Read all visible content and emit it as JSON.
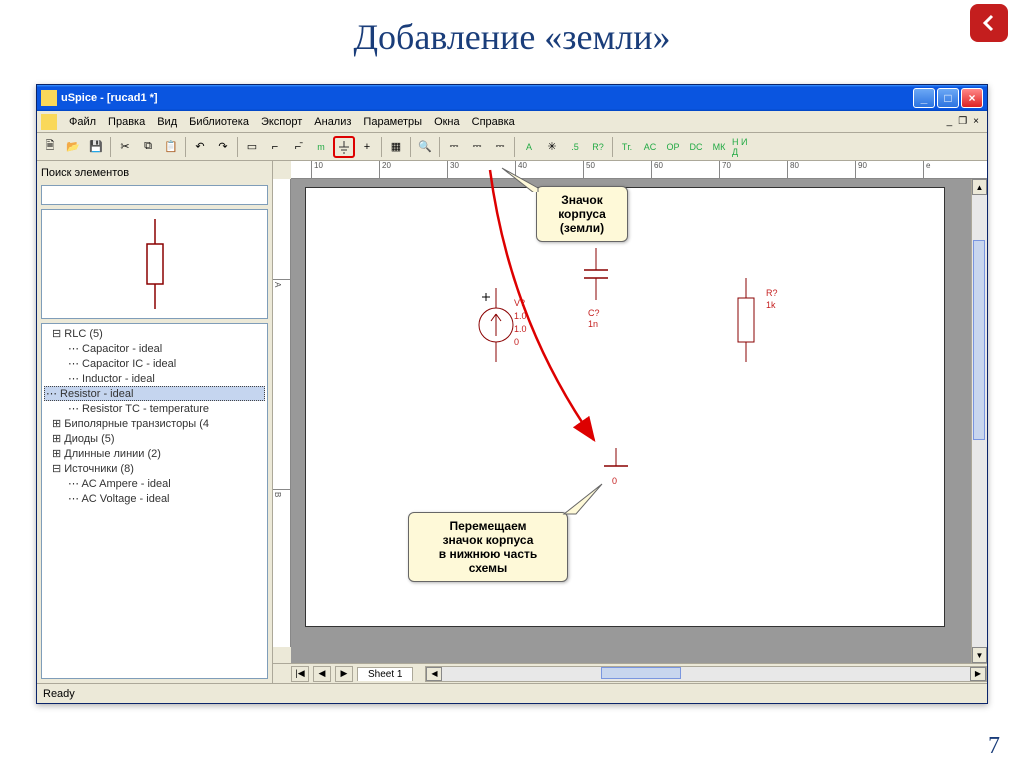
{
  "slide": {
    "title": "Добавление «земли»",
    "page_number": "7"
  },
  "window": {
    "title": "uSpice - [rucad1 *]",
    "status": "Ready"
  },
  "menu": {
    "items": [
      "Файл",
      "Правка",
      "Вид",
      "Библиотека",
      "Экспорт",
      "Анализ",
      "Параметры",
      "Окна",
      "Справка"
    ]
  },
  "toolbar": {
    "buttons": [
      "new",
      "open",
      "save",
      "sep",
      "cut",
      "copy",
      "paste",
      "sep",
      "undo",
      "redo",
      "sep",
      "arrow",
      "signal-lo",
      "signal-hi",
      "m",
      "ground",
      "plus",
      "sep",
      "grid",
      "sep",
      "zoom",
      "sep",
      "probe1",
      "probe2",
      "probe3",
      "sep",
      "A",
      "gear",
      "s",
      "R?",
      "sep",
      "tg",
      "ac",
      "op",
      "dc",
      "mk",
      "na"
    ],
    "highlight_index": 15,
    "text_labels": {
      "m": "m",
      "A": "A",
      "s": ".5",
      "R?": "R?",
      "tg": "Тг.",
      "ac": "AC",
      "op": "OP",
      "dc": "DC",
      "mk": "МК",
      "na": "Н И Д"
    }
  },
  "ruler": {
    "h_ticks": [
      "10",
      "20",
      "30",
      "40",
      "50",
      "60",
      "70",
      "80",
      "90",
      "e"
    ],
    "v_ticks": [
      "A",
      "B"
    ]
  },
  "sidebar": {
    "search_label": "Поиск элементов",
    "tree": [
      {
        "type": "group",
        "expand": "-",
        "label": "RLC (5)",
        "indent": 0
      },
      {
        "type": "item",
        "label": "Capacitor - ideal",
        "indent": 1
      },
      {
        "type": "item",
        "label": "Capacitor IC - ideal",
        "indent": 1
      },
      {
        "type": "item",
        "label": "Inductor - ideal",
        "indent": 1
      },
      {
        "type": "item",
        "label": "Resistor - ideal",
        "indent": 1,
        "selected": true
      },
      {
        "type": "item",
        "label": "Resistor TC - temperature",
        "indent": 1
      },
      {
        "type": "group",
        "expand": "+",
        "label": "Биполярные транзисторы (4",
        "indent": 0
      },
      {
        "type": "group",
        "expand": "+",
        "label": "Диоды (5)",
        "indent": 0
      },
      {
        "type": "group",
        "expand": "+",
        "label": "Длинные линии (2)",
        "indent": 0
      },
      {
        "type": "group",
        "expand": "-",
        "label": "Источники (8)",
        "indent": 0
      },
      {
        "type": "item",
        "label": "AC Ampere - ideal",
        "indent": 1
      },
      {
        "type": "item",
        "label": "AC Voltage - ideal",
        "indent": 1
      }
    ]
  },
  "sheet": {
    "tab": "Sheet 1"
  },
  "callouts": {
    "c1_l1": "Значок",
    "c1_l2": "корпуса",
    "c1_l3": "(земли)",
    "c2_l1": "Перемещаем",
    "c2_l2": "значок корпуса",
    "c2_l3": "в нижнюю часть",
    "c2_l4": "схемы"
  },
  "schematic": {
    "voltage_source": {
      "label": "V?",
      "v1": "1.0",
      "v2": "1.0",
      "v3": "0"
    },
    "capacitor": {
      "label": "C?",
      "value": "1n"
    },
    "resistor": {
      "label": "R?",
      "value": "1k"
    },
    "ground": {
      "label": "0"
    }
  },
  "colors": {
    "title_color": "#1a3d7a",
    "xp_blue": "#0a55e0",
    "panel": "#ece9d8",
    "callout_bg": "#fef9d8",
    "highlight": "#d00",
    "comp_red": "#c41e1e"
  }
}
